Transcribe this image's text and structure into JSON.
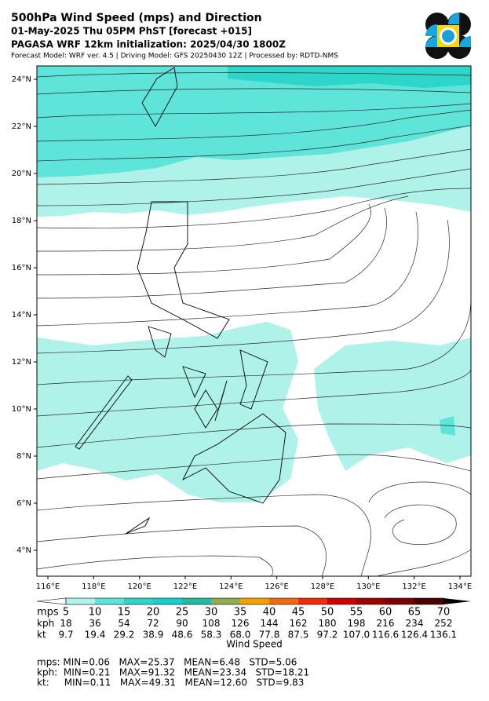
{
  "header": {
    "title": "500hPa Wind Speed (mps) and Direction",
    "line2": "01-May-2025 Thu 05PM PhST [forecast +015]",
    "line3": "PAGASA WRF 12km initialization: 2025/04/30 1800Z",
    "line4": "Forecast Model: WRF ver. 4.5 | Driving Model: GFS 20250430 12Z | Processed by: RDTD-NMS"
  },
  "map": {
    "lat_labels": [
      "24°N",
      "22°N",
      "20°N",
      "18°N",
      "16°N",
      "14°N",
      "12°N",
      "10°N",
      "8°N",
      "6°N",
      "4°N"
    ],
    "lon_labels": [
      "116°E",
      "118°E",
      "120°E",
      "122°E",
      "124°E",
      "126°E",
      "128°E",
      "130°E",
      "132°E",
      "134°E"
    ]
  },
  "colorbar": {
    "under": "#ffffff",
    "over": "#000000",
    "colors": [
      "#aef2ea",
      "#5ee4d8",
      "#2ed6c9",
      "#17cfd0",
      "#22bba6",
      "#8fae52",
      "#f4a000",
      "#f06a10",
      "#f02a0a",
      "#cc0000",
      "#9c0000",
      "#7a0000",
      "#4a0000"
    ],
    "rows": [
      {
        "unit": "mps",
        "values": [
          5,
          10,
          15,
          20,
          25,
          30,
          35,
          40,
          45,
          50,
          55,
          60,
          65,
          70
        ]
      },
      {
        "unit": "kph",
        "values": [
          18,
          36,
          54,
          72,
          90,
          108,
          126,
          144,
          162,
          180,
          198,
          216,
          234,
          252
        ]
      },
      {
        "unit": "kt",
        "values": [
          "9.7",
          "19.4",
          "29.2",
          "38.9",
          "48.6",
          "58.3",
          "68.0",
          "77.8",
          "87.5",
          "97.2",
          "107.0",
          "116.6",
          "126.4",
          "136.1"
        ]
      }
    ],
    "label": "Wind Speed"
  },
  "stats": [
    "mps: MIN=0.06   MAX=25.37   MEAN=6.48   STD=5.06",
    "kph:  MIN=0.21   MAX=91.32   MEAN=23.34   STD=18.21",
    "kt:     MIN=0.11   MAX=49.31   MEAN=12.60   STD=9.83"
  ]
}
